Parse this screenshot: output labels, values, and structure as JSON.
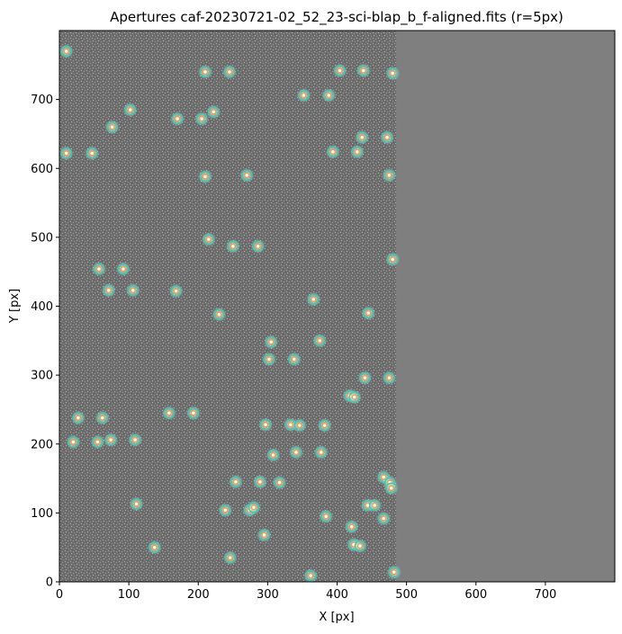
{
  "chart_data": {
    "type": "scatter",
    "title": "Apertures caf-20230721-02_52_23-sci-blap_b_f-aligned.fits (r=5px)",
    "xlabel": "X [px]",
    "ylabel": "Y [px]",
    "xlim": [
      0,
      800
    ],
    "ylim": [
      0,
      800
    ],
    "x_ticks": [
      0,
      100,
      200,
      300,
      400,
      500,
      600,
      700
    ],
    "y_ticks": [
      0,
      100,
      200,
      300,
      400,
      500,
      600,
      700
    ],
    "image_data_extent_x": [
      0,
      485
    ],
    "aperture_radius_px": 5,
    "colors": {
      "image_background": "#7f7f7f",
      "aperture_inner": "#e7a33a",
      "aperture_outer": "#3fc9b0",
      "star_core": "#ffffff"
    },
    "sources": [
      {
        "x": 10,
        "y": 770
      },
      {
        "x": 210,
        "y": 740
      },
      {
        "x": 245,
        "y": 740
      },
      {
        "x": 404,
        "y": 742
      },
      {
        "x": 438,
        "y": 742
      },
      {
        "x": 480,
        "y": 738
      },
      {
        "x": 352,
        "y": 706
      },
      {
        "x": 388,
        "y": 706
      },
      {
        "x": 102,
        "y": 685
      },
      {
        "x": 170,
        "y": 672
      },
      {
        "x": 205,
        "y": 672
      },
      {
        "x": 222,
        "y": 682
      },
      {
        "x": 76,
        "y": 660
      },
      {
        "x": 436,
        "y": 645
      },
      {
        "x": 472,
        "y": 645
      },
      {
        "x": 10,
        "y": 622
      },
      {
        "x": 47,
        "y": 622
      },
      {
        "x": 394,
        "y": 624
      },
      {
        "x": 429,
        "y": 624
      },
      {
        "x": 210,
        "y": 588
      },
      {
        "x": 270,
        "y": 590
      },
      {
        "x": 475,
        "y": 590
      },
      {
        "x": 215,
        "y": 497
      },
      {
        "x": 250,
        "y": 487
      },
      {
        "x": 286,
        "y": 487
      },
      {
        "x": 480,
        "y": 468
      },
      {
        "x": 57,
        "y": 454
      },
      {
        "x": 92,
        "y": 454
      },
      {
        "x": 71,
        "y": 423
      },
      {
        "x": 106,
        "y": 423
      },
      {
        "x": 168,
        "y": 422
      },
      {
        "x": 366,
        "y": 410
      },
      {
        "x": 230,
        "y": 388
      },
      {
        "x": 445,
        "y": 390
      },
      {
        "x": 305,
        "y": 348
      },
      {
        "x": 375,
        "y": 350
      },
      {
        "x": 302,
        "y": 323
      },
      {
        "x": 338,
        "y": 323
      },
      {
        "x": 440,
        "y": 296
      },
      {
        "x": 475,
        "y": 296
      },
      {
        "x": 418,
        "y": 270
      },
      {
        "x": 425,
        "y": 268
      },
      {
        "x": 158,
        "y": 245
      },
      {
        "x": 193,
        "y": 245
      },
      {
        "x": 27,
        "y": 238
      },
      {
        "x": 62,
        "y": 238
      },
      {
        "x": 297,
        "y": 228
      },
      {
        "x": 333,
        "y": 228
      },
      {
        "x": 346,
        "y": 227
      },
      {
        "x": 382,
        "y": 227
      },
      {
        "x": 20,
        "y": 203
      },
      {
        "x": 55,
        "y": 203
      },
      {
        "x": 74,
        "y": 206
      },
      {
        "x": 109,
        "y": 206
      },
      {
        "x": 308,
        "y": 184
      },
      {
        "x": 341,
        "y": 188
      },
      {
        "x": 377,
        "y": 188
      },
      {
        "x": 467,
        "y": 152
      },
      {
        "x": 476,
        "y": 144
      },
      {
        "x": 478,
        "y": 136
      },
      {
        "x": 254,
        "y": 145
      },
      {
        "x": 289,
        "y": 145
      },
      {
        "x": 317,
        "y": 144
      },
      {
        "x": 111,
        "y": 113
      },
      {
        "x": 444,
        "y": 111
      },
      {
        "x": 454,
        "y": 111
      },
      {
        "x": 239,
        "y": 104
      },
      {
        "x": 274,
        "y": 104
      },
      {
        "x": 280,
        "y": 108
      },
      {
        "x": 384,
        "y": 95
      },
      {
        "x": 467,
        "y": 92
      },
      {
        "x": 421,
        "y": 80
      },
      {
        "x": 295,
        "y": 68
      },
      {
        "x": 137,
        "y": 50
      },
      {
        "x": 424,
        "y": 54
      },
      {
        "x": 433,
        "y": 52
      },
      {
        "x": 246,
        "y": 35
      },
      {
        "x": 482,
        "y": 14
      },
      {
        "x": 362,
        "y": 9
      }
    ]
  }
}
